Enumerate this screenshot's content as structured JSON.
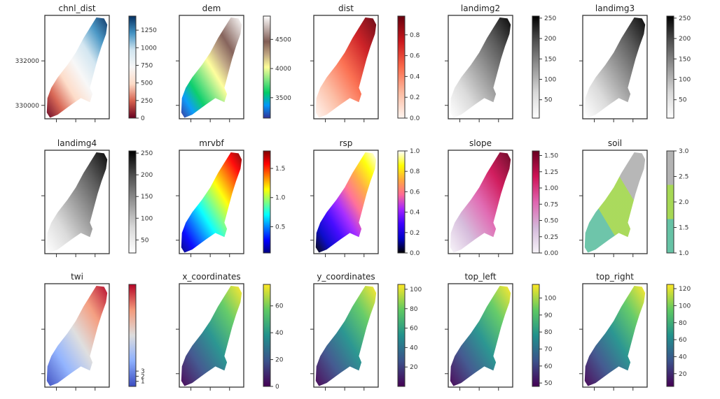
{
  "chart_data": [
    {
      "type": "heatmap",
      "title": "chnl_dist",
      "colormap": "RdBu",
      "colorbar_range": [
        0,
        1450
      ],
      "colorbar_ticks": [
        "0",
        "250",
        "500",
        "750",
        "1000",
        "1250"
      ],
      "y_ticks": [
        "332000",
        "330000"
      ]
    },
    {
      "type": "heatmap",
      "title": "dem",
      "colormap": "terrain",
      "colorbar_range": [
        3150,
        4900
      ],
      "colorbar_ticks": [
        "3500",
        "4000",
        "4500"
      ]
    },
    {
      "type": "heatmap",
      "title": "dist",
      "colormap": "Reds",
      "colorbar_range": [
        0,
        0.98
      ],
      "colorbar_ticks": [
        "0.0",
        "0.2",
        "0.4",
        "0.6",
        "0.8"
      ]
    },
    {
      "type": "heatmap",
      "title": "landimg2",
      "colormap": "Greys",
      "colorbar_range": [
        5,
        255
      ],
      "colorbar_ticks": [
        "50",
        "100",
        "150",
        "200",
        "250"
      ]
    },
    {
      "type": "heatmap",
      "title": "landimg3",
      "colormap": "Greys",
      "colorbar_range": [
        5,
        255
      ],
      "colorbar_ticks": [
        "50",
        "100",
        "150",
        "200",
        "250"
      ]
    },
    {
      "type": "heatmap",
      "title": "landimg4",
      "colormap": "Greys",
      "colorbar_range": [
        20,
        255
      ],
      "colorbar_ticks": [
        "50",
        "100",
        "150",
        "200",
        "250"
      ]
    },
    {
      "type": "heatmap",
      "title": "mrvbf",
      "colormap": "jet",
      "colorbar_range": [
        0.05,
        1.8
      ],
      "colorbar_ticks": [
        "0.5",
        "1.0",
        "1.5"
      ]
    },
    {
      "type": "heatmap",
      "title": "rsp",
      "colormap": "gnuplot2",
      "colorbar_range": [
        0,
        1.0
      ],
      "colorbar_ticks": [
        "0.0",
        "0.2",
        "0.4",
        "0.6",
        "0.8",
        "1.0"
      ]
    },
    {
      "type": "heatmap",
      "title": "slope",
      "colormap": "PuRd",
      "colorbar_range": [
        0,
        1.57
      ],
      "colorbar_ticks": [
        "0.00",
        "0.25",
        "0.50",
        "0.75",
        "1.00",
        "1.25",
        "1.50"
      ]
    },
    {
      "type": "heatmap",
      "title": "soil",
      "colormap": "Set2",
      "colorbar_range": [
        1.0,
        3.0
      ],
      "colorbar_ticks": [
        "1.0",
        "1.5",
        "2.0",
        "2.5",
        "3.0"
      ]
    },
    {
      "type": "heatmap",
      "title": "twi",
      "colormap": "coolwarm",
      "colorbar_range": [
        0,
        20
      ],
      "colorbar_ticks": [
        "1",
        "2",
        "3"
      ]
    },
    {
      "type": "heatmap",
      "title": "x_coordinates",
      "colormap": "viridis",
      "colorbar_range": [
        0,
        76
      ],
      "colorbar_ticks": [
        "0",
        "20",
        "40",
        "60"
      ]
    },
    {
      "type": "heatmap",
      "title": "y_coordinates",
      "colormap": "viridis",
      "colorbar_range": [
        0,
        105
      ],
      "colorbar_ticks": [
        "20",
        "40",
        "60",
        "80",
        "100"
      ]
    },
    {
      "type": "heatmap",
      "title": "top_left",
      "colormap": "viridis",
      "colorbar_range": [
        48,
        108
      ],
      "colorbar_ticks": [
        "50",
        "60",
        "70",
        "80",
        "90",
        "100"
      ]
    },
    {
      "type": "heatmap",
      "title": "top_right",
      "colormap": "viridis",
      "colorbar_range": [
        5,
        125
      ],
      "colorbar_ticks": [
        "20",
        "40",
        "60",
        "80",
        "100",
        "120"
      ]
    }
  ]
}
